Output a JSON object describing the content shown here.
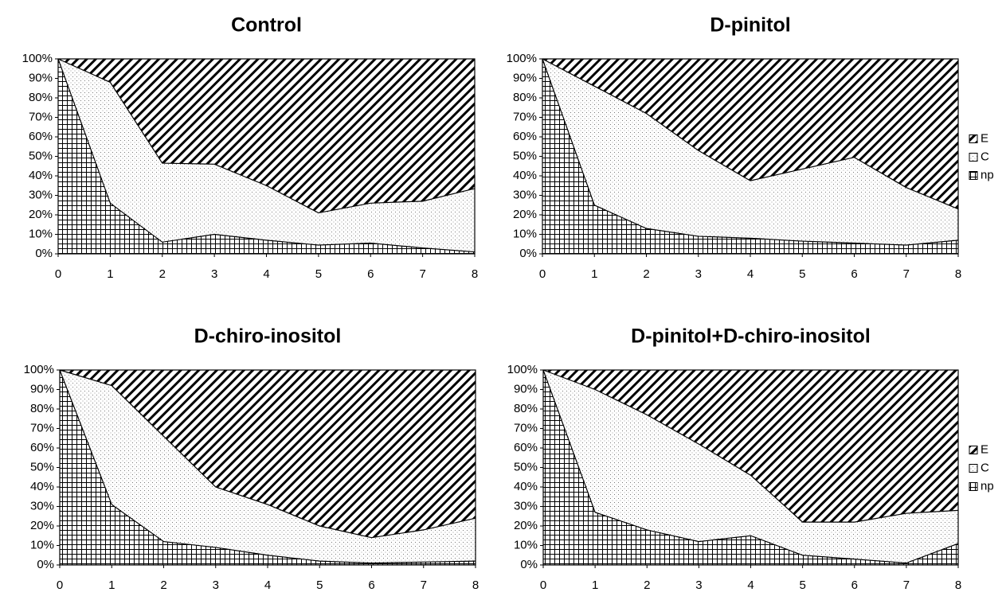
{
  "chart_data": [
    {
      "type": "area",
      "stacked": "percent",
      "title": "Control",
      "xlabel": "",
      "ylabel": "",
      "x": [
        0,
        1,
        2,
        3,
        4,
        5,
        6,
        7,
        8
      ],
      "ylim": [
        0,
        100
      ],
      "yticks": [
        "0%",
        "10%",
        "20%",
        "30%",
        "40%",
        "50%",
        "60%",
        "70%",
        "80%",
        "90%",
        "100%"
      ],
      "legend": "none",
      "series": [
        {
          "name": "np",
          "pattern": "grid",
          "values": [
            100,
            26,
            6,
            10,
            7,
            4.5,
            5.5,
            3,
            1
          ]
        },
        {
          "name": "C",
          "pattern": "dots",
          "values": [
            0,
            62,
            40.5,
            36,
            28,
            16.5,
            20.5,
            24,
            32.5
          ]
        },
        {
          "name": "E",
          "pattern": "diagonal",
          "values": [
            0,
            12,
            53.5,
            54,
            65,
            79,
            74,
            73,
            66.5
          ]
        }
      ]
    },
    {
      "type": "area",
      "stacked": "percent",
      "title": "D-pinitol",
      "xlabel": "",
      "ylabel": "",
      "x": [
        0,
        1,
        2,
        3,
        4,
        5,
        6,
        7,
        8
      ],
      "ylim": [
        0,
        100
      ],
      "yticks": [
        "0%",
        "10%",
        "20%",
        "30%",
        "40%",
        "50%",
        "60%",
        "70%",
        "80%",
        "90%",
        "100%"
      ],
      "legend": "right",
      "series": [
        {
          "name": "np",
          "pattern": "grid",
          "values": [
            100,
            25,
            13,
            9,
            8,
            6.5,
            5.5,
            4.5,
            7
          ]
        },
        {
          "name": "C",
          "pattern": "dots",
          "values": [
            0,
            61,
            59,
            44,
            29.5,
            37,
            44,
            29.5,
            16
          ]
        },
        {
          "name": "E",
          "pattern": "diagonal",
          "values": [
            0,
            14,
            28,
            47,
            62.5,
            56.5,
            50.5,
            66,
            77
          ]
        }
      ]
    },
    {
      "type": "area",
      "stacked": "percent",
      "title": "D-chiro-inositol",
      "xlabel": "",
      "ylabel": "",
      "x": [
        0,
        1,
        2,
        3,
        4,
        5,
        6,
        7,
        8
      ],
      "ylim": [
        0,
        100
      ],
      "yticks": [
        "0%",
        "10%",
        "20%",
        "30%",
        "40%",
        "50%",
        "60%",
        "70%",
        "80%",
        "90%",
        "100%"
      ],
      "legend": "none",
      "series": [
        {
          "name": "np",
          "pattern": "grid",
          "values": [
            100,
            31,
            12,
            9,
            5,
            2,
            1,
            1.5,
            2
          ]
        },
        {
          "name": "C",
          "pattern": "dots",
          "values": [
            0,
            61,
            54,
            31,
            26,
            18,
            13,
            16.5,
            22
          ]
        },
        {
          "name": "E",
          "pattern": "diagonal",
          "values": [
            0,
            8,
            34,
            60,
            69,
            80,
            86,
            82,
            76
          ]
        }
      ]
    },
    {
      "type": "area",
      "stacked": "percent",
      "title": "D-pinitol+D-chiro-inositol",
      "xlabel": "",
      "ylabel": "",
      "x": [
        0,
        1,
        2,
        3,
        4,
        5,
        6,
        7,
        8
      ],
      "ylim": [
        0,
        100
      ],
      "yticks": [
        "0%",
        "10%",
        "20%",
        "30%",
        "40%",
        "50%",
        "60%",
        "70%",
        "80%",
        "90%",
        "100%"
      ],
      "legend": "right",
      "series": [
        {
          "name": "np",
          "pattern": "grid",
          "values": [
            100,
            27,
            18,
            12,
            15,
            5,
            3,
            1,
            11
          ]
        },
        {
          "name": "C",
          "pattern": "dots",
          "values": [
            0,
            63,
            59,
            50,
            31,
            17,
            19,
            25.5,
            17
          ]
        },
        {
          "name": "E",
          "pattern": "diagonal",
          "values": [
            0,
            10,
            23,
            38,
            54,
            78,
            78,
            73.5,
            72
          ]
        }
      ]
    }
  ]
}
